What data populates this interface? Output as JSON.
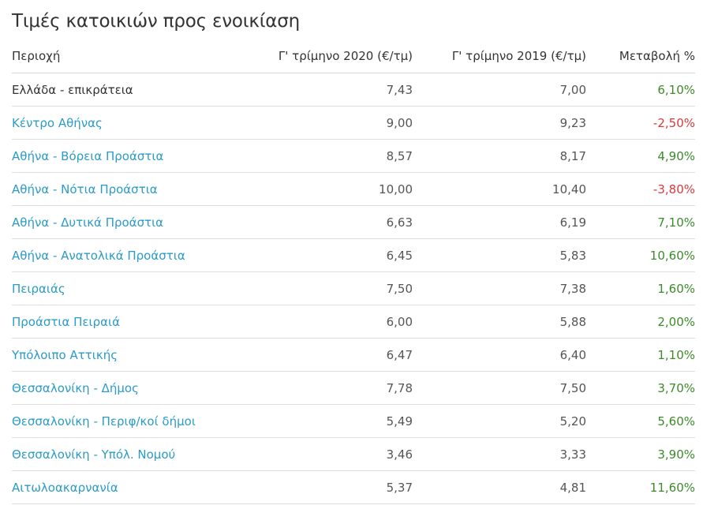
{
  "title": "Τιμές κατοικιών προς ενοικίαση",
  "headers": {
    "region": "Περιοχή",
    "q2020": "Γ' τρίμηνο 2020 (€/τμ)",
    "q2019": "Γ' τρίμηνο 2019 (€/τμ)",
    "change": "Μεταβολή %"
  },
  "colors": {
    "link": "#2b9bc8",
    "positive": "#3c8a2a",
    "negative": "#d93a3a",
    "text": "#333333"
  },
  "rows": [
    {
      "region": "Ελλάδα - επικράτεια",
      "q2020": "7,43",
      "q2019": "7,00",
      "change": "6,10%",
      "sign": "pos",
      "link": false
    },
    {
      "region": "Κέντρο Αθήνας",
      "q2020": "9,00",
      "q2019": "9,23",
      "change": "-2,50%",
      "sign": "neg",
      "link": true
    },
    {
      "region": "Αθήνα - Βόρεια Προάστια",
      "q2020": "8,57",
      "q2019": "8,17",
      "change": "4,90%",
      "sign": "pos",
      "link": true
    },
    {
      "region": "Αθήνα - Νότια Προάστια",
      "q2020": "10,00",
      "q2019": "10,40",
      "change": "-3,80%",
      "sign": "neg",
      "link": true
    },
    {
      "region": "Αθήνα - Δυτικά Προάστια",
      "q2020": "6,63",
      "q2019": "6,19",
      "change": "7,10%",
      "sign": "pos",
      "link": true
    },
    {
      "region": "Αθήνα - Ανατολικά Προάστια",
      "q2020": "6,45",
      "q2019": "5,83",
      "change": "10,60%",
      "sign": "pos",
      "link": true
    },
    {
      "region": "Πειραιάς",
      "q2020": "7,50",
      "q2019": "7,38",
      "change": "1,60%",
      "sign": "pos",
      "link": true
    },
    {
      "region": "Προάστια Πειραιά",
      "q2020": "6,00",
      "q2019": "5,88",
      "change": "2,00%",
      "sign": "pos",
      "link": true
    },
    {
      "region": "Υπόλοιπο Αττικής",
      "q2020": "6,47",
      "q2019": "6,40",
      "change": "1,10%",
      "sign": "pos",
      "link": true
    },
    {
      "region": "Θεσσαλονίκη - Δήμος",
      "q2020": "7,78",
      "q2019": "7,50",
      "change": "3,70%",
      "sign": "pos",
      "link": true
    },
    {
      "region": "Θεσσαλονίκη - Περιφ/κοί δήμοι",
      "q2020": "5,49",
      "q2019": "5,20",
      "change": "5,60%",
      "sign": "pos",
      "link": true
    },
    {
      "region": "Θεσσαλονίκη - Υπόλ. Νομού",
      "q2020": "3,46",
      "q2019": "3,33",
      "change": "3,90%",
      "sign": "pos",
      "link": true
    },
    {
      "region": "Αιτωλοακαρνανία",
      "q2020": "5,37",
      "q2019": "4,81",
      "change": "11,60%",
      "sign": "pos",
      "link": true
    }
  ]
}
